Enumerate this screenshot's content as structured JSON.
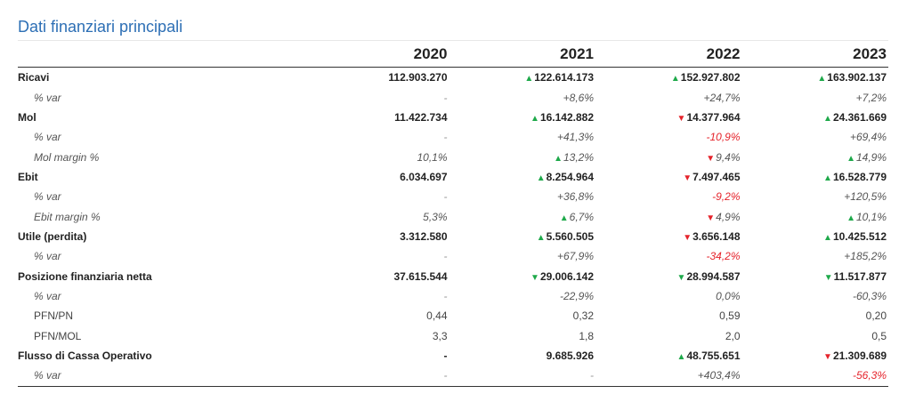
{
  "title": "Dati finanziari principali",
  "columns": [
    "2020",
    "2021",
    "2022",
    "2023"
  ],
  "colors": {
    "title": "#2d6fb5",
    "up": "#1ea94a",
    "down": "#e5232b"
  },
  "rows": [
    {
      "label": "Ricavi",
      "style": "main",
      "cells": [
        {
          "v": "112.903.270"
        },
        {
          "v": "122.614.173",
          "arrow": "up"
        },
        {
          "v": "152.927.802",
          "arrow": "up"
        },
        {
          "v": "163.902.137",
          "arrow": "up"
        }
      ]
    },
    {
      "label": "% var",
      "style": "sub",
      "cells": [
        {
          "v": "-",
          "dash": true
        },
        {
          "v": "+8,6%"
        },
        {
          "v": "+24,7%"
        },
        {
          "v": "+7,2%"
        }
      ]
    },
    {
      "label": "Mol",
      "style": "main",
      "cells": [
        {
          "v": "11.422.734"
        },
        {
          "v": "16.142.882",
          "arrow": "up"
        },
        {
          "v": "14.377.964",
          "arrow": "down"
        },
        {
          "v": "24.361.669",
          "arrow": "up"
        }
      ]
    },
    {
      "label": "% var",
      "style": "sub",
      "cells": [
        {
          "v": "-",
          "dash": true
        },
        {
          "v": "+41,3%"
        },
        {
          "v": "-10,9%",
          "neg": true
        },
        {
          "v": "+69,4%"
        }
      ]
    },
    {
      "label": "Mol margin %",
      "style": "sub",
      "cells": [
        {
          "v": "10,1%"
        },
        {
          "v": "13,2%",
          "arrow": "up"
        },
        {
          "v": "9,4%",
          "arrow": "down"
        },
        {
          "v": "14,9%",
          "arrow": "up"
        }
      ]
    },
    {
      "label": "Ebit",
      "style": "main",
      "cells": [
        {
          "v": "6.034.697"
        },
        {
          "v": "8.254.964",
          "arrow": "up"
        },
        {
          "v": "7.497.465",
          "arrow": "down"
        },
        {
          "v": "16.528.779",
          "arrow": "up"
        }
      ]
    },
    {
      "label": "% var",
      "style": "sub",
      "cells": [
        {
          "v": "-",
          "dash": true
        },
        {
          "v": "+36,8%"
        },
        {
          "v": "-9,2%",
          "neg": true
        },
        {
          "v": "+120,5%"
        }
      ]
    },
    {
      "label": "Ebit margin %",
      "style": "sub",
      "cells": [
        {
          "v": "5,3%"
        },
        {
          "v": "6,7%",
          "arrow": "up"
        },
        {
          "v": "4,9%",
          "arrow": "down"
        },
        {
          "v": "10,1%",
          "arrow": "up"
        }
      ]
    },
    {
      "label": "Utile (perdita)",
      "style": "main",
      "cells": [
        {
          "v": "3.312.580"
        },
        {
          "v": "5.560.505",
          "arrow": "up"
        },
        {
          "v": "3.656.148",
          "arrow": "down"
        },
        {
          "v": "10.425.512",
          "arrow": "up"
        }
      ]
    },
    {
      "label": "% var",
      "style": "sub",
      "cells": [
        {
          "v": "-",
          "dash": true
        },
        {
          "v": "+67,9%"
        },
        {
          "v": "-34,2%",
          "neg": true
        },
        {
          "v": "+185,2%"
        }
      ]
    },
    {
      "label": "Posizione finanziaria netta",
      "style": "main",
      "cells": [
        {
          "v": "37.615.544"
        },
        {
          "v": "29.006.142",
          "arrow": "down-green"
        },
        {
          "v": "28.994.587",
          "arrow": "down-green"
        },
        {
          "v": "11.517.877",
          "arrow": "down-green"
        }
      ]
    },
    {
      "label": "% var",
      "style": "sub",
      "cells": [
        {
          "v": "-",
          "dash": true
        },
        {
          "v": "-22,9%"
        },
        {
          "v": "0,0%"
        },
        {
          "v": "-60,3%"
        }
      ]
    },
    {
      "label": "PFN/PN",
      "style": "plain",
      "cells": [
        {
          "v": "0,44"
        },
        {
          "v": "0,32"
        },
        {
          "v": "0,59"
        },
        {
          "v": "0,20"
        }
      ]
    },
    {
      "label": "PFN/MOL",
      "style": "plain",
      "cells": [
        {
          "v": "3,3"
        },
        {
          "v": "1,8"
        },
        {
          "v": "2,0"
        },
        {
          "v": "0,5"
        }
      ]
    },
    {
      "label": "Flusso di Cassa Operativo",
      "style": "main",
      "cells": [
        {
          "v": "-"
        },
        {
          "v": "9.685.926"
        },
        {
          "v": "48.755.651",
          "arrow": "up"
        },
        {
          "v": "21.309.689",
          "arrow": "down"
        }
      ]
    },
    {
      "label": "% var",
      "style": "sub",
      "last": true,
      "cells": [
        {
          "v": "-",
          "dash": true
        },
        {
          "v": "-",
          "dash": true
        },
        {
          "v": "+403,4%"
        },
        {
          "v": "-56,3%",
          "neg": true
        }
      ]
    }
  ]
}
